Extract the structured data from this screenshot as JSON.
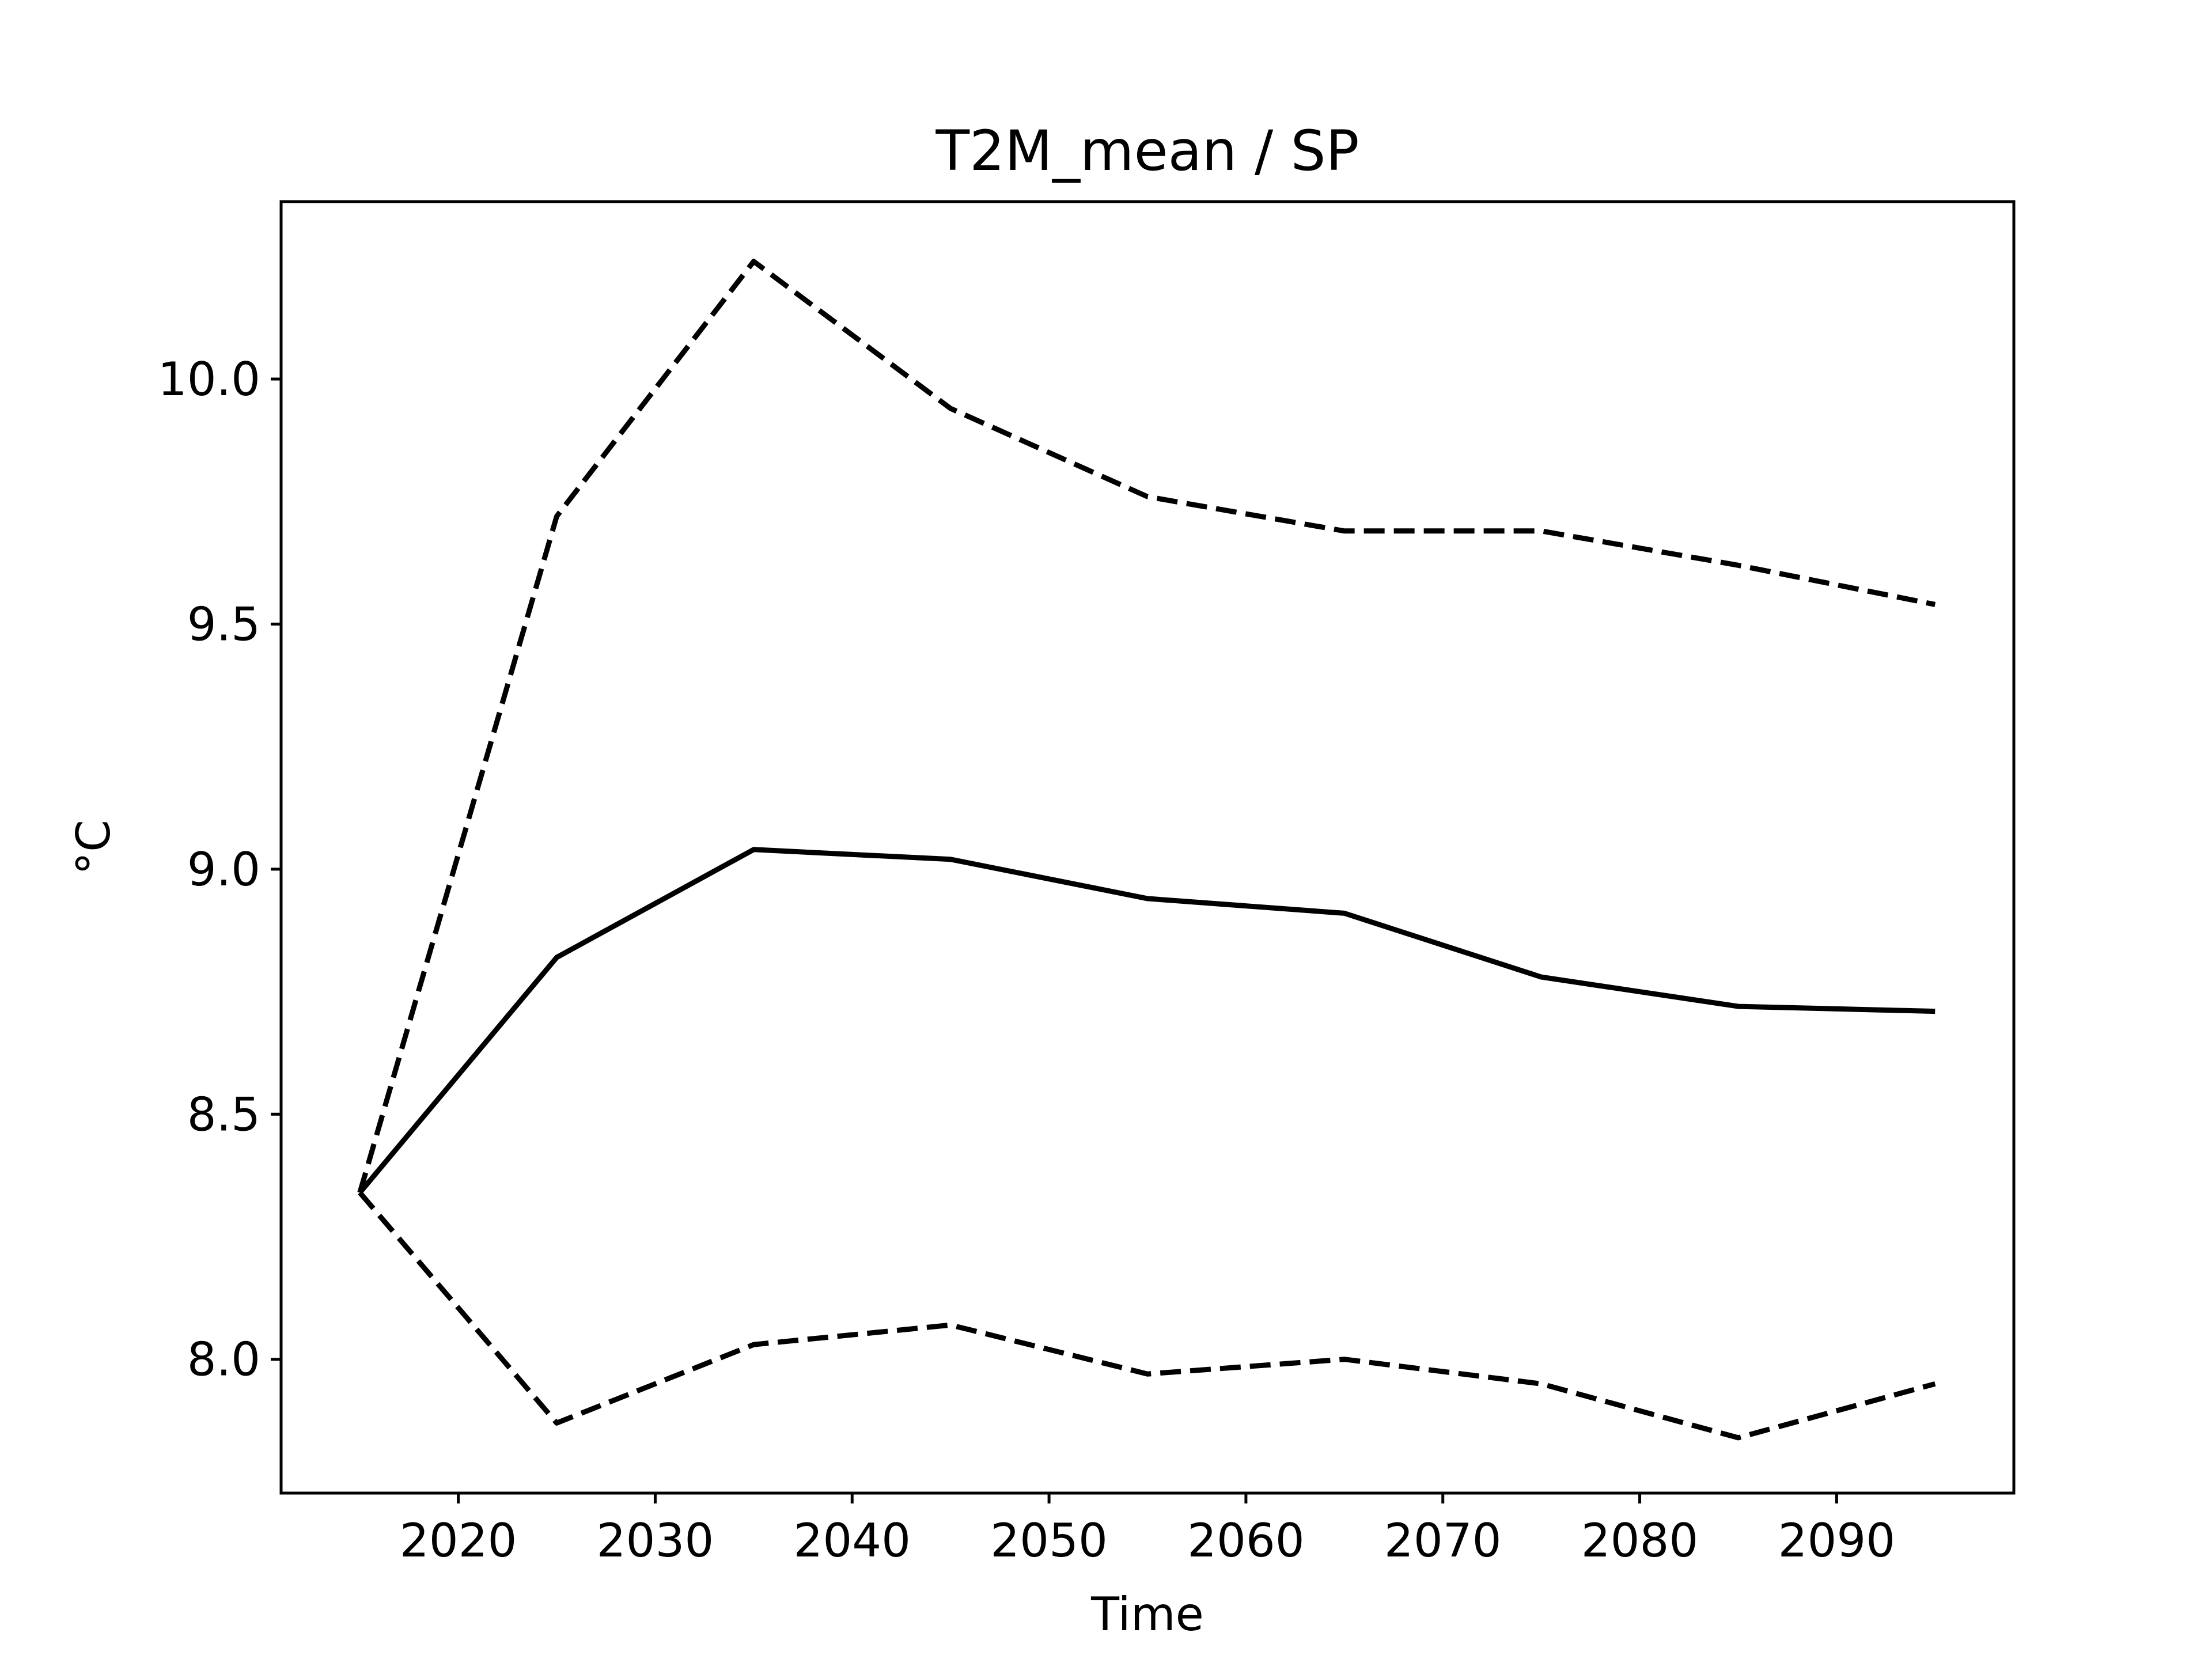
{
  "chart_data": {
    "type": "line",
    "title": "T2M_mean / SP",
    "xlabel": "Time",
    "ylabel": "°C",
    "xlim": [
      2011,
      2099
    ],
    "ylim": [
      7.727,
      10.362
    ],
    "xticks": [
      2020,
      2030,
      2040,
      2050,
      2060,
      2070,
      2080,
      2090
    ],
    "xtick_labels": [
      "2020",
      "2030",
      "2040",
      "2050",
      "2060",
      "2070",
      "2080",
      "2090"
    ],
    "yticks": [
      8.0,
      8.5,
      9.0,
      9.5,
      10.0
    ],
    "ytick_labels": [
      "8.0",
      "8.5",
      "9.0",
      "9.5",
      "10.0"
    ],
    "grid": false,
    "legend": "none",
    "x": [
      2015,
      2025,
      2035,
      2045,
      2055,
      2065,
      2075,
      2085,
      2095
    ],
    "series": [
      {
        "values": [
          8.34,
          9.72,
          10.24,
          9.94,
          9.76,
          9.69,
          9.69,
          9.62,
          9.54
        ],
        "style": "dashed",
        "color": "#000000"
      },
      {
        "values": [
          8.34,
          8.82,
          9.04,
          9.02,
          8.94,
          8.91,
          8.78,
          8.72,
          8.71
        ],
        "style": "solid",
        "color": "#000000"
      },
      {
        "values": [
          8.34,
          7.87,
          8.03,
          8.07,
          7.97,
          8.0,
          7.95,
          7.84,
          7.95
        ],
        "style": "dashed",
        "color": "#000000"
      }
    ]
  }
}
